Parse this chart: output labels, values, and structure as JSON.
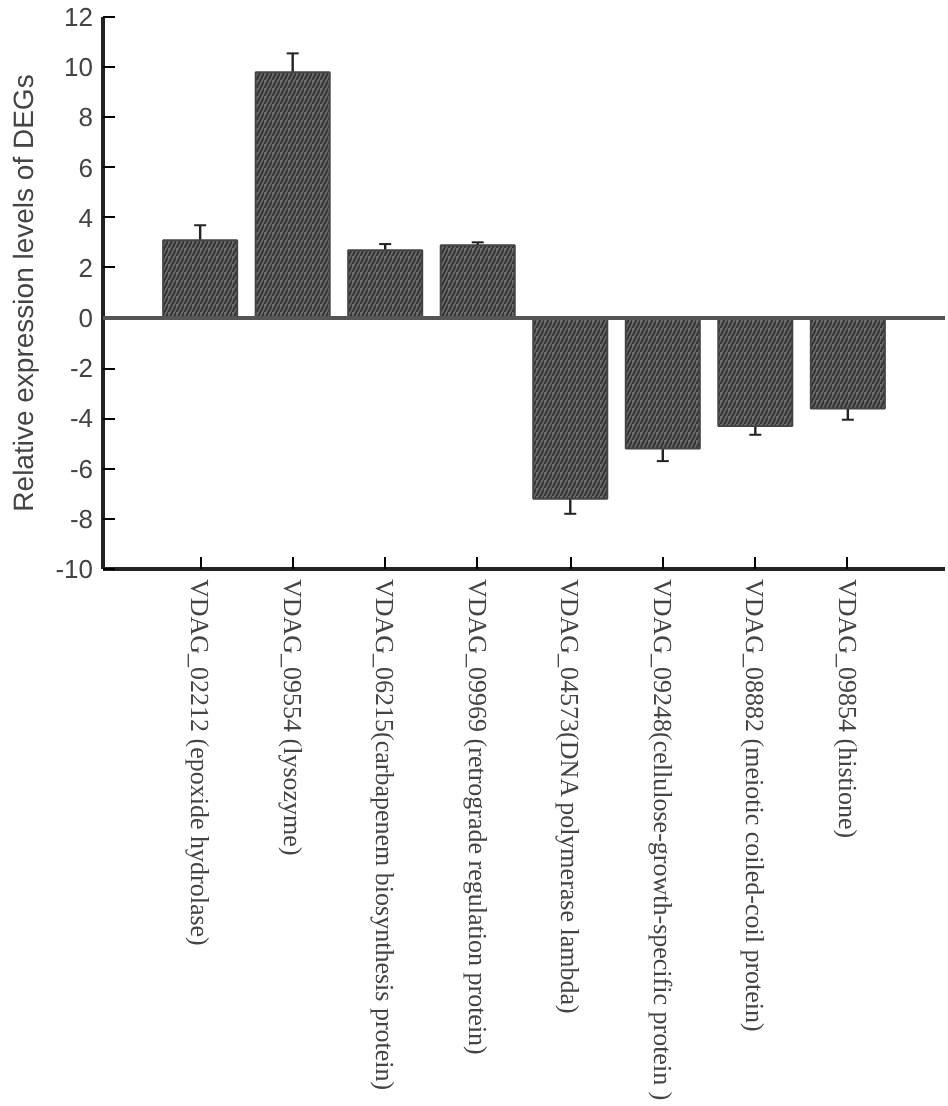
{
  "chart_data": {
    "type": "bar",
    "ylabel": "Relative expression levels of DEGs",
    "categories": [
      "VDAG_02212 (epoxide hydrolase)",
      "VDAG_09554 (lysozyme)",
      "VDAG_06215(carbapenem biosynthesis protein)",
      "VDAG_09969 (retrograde regulation protein)",
      "VDAG_04573(DNA polymerase lambda)",
      "VDAG_09248(cellulose-growth-specific protein )",
      "VDAG_08882 (meiotic coiled-coil protein)",
      "VDAG_09854 (histione)"
    ],
    "values": [
      3.1,
      9.8,
      2.7,
      2.9,
      -7.2,
      -5.2,
      -4.3,
      -3.6
    ],
    "errors": [
      0.6,
      0.75,
      0.25,
      0.12,
      0.6,
      0.5,
      0.35,
      0.45
    ],
    "color": "#6b6b6b",
    "ylim": [
      -10,
      12
    ],
    "yticks": [
      -10,
      -8,
      -6,
      -4,
      -2,
      0,
      2,
      4,
      6,
      8,
      10,
      12
    ],
    "ref_lines": [
      {
        "axis": "y",
        "value": 0,
        "color": "#555555"
      }
    ],
    "grid": false
  }
}
